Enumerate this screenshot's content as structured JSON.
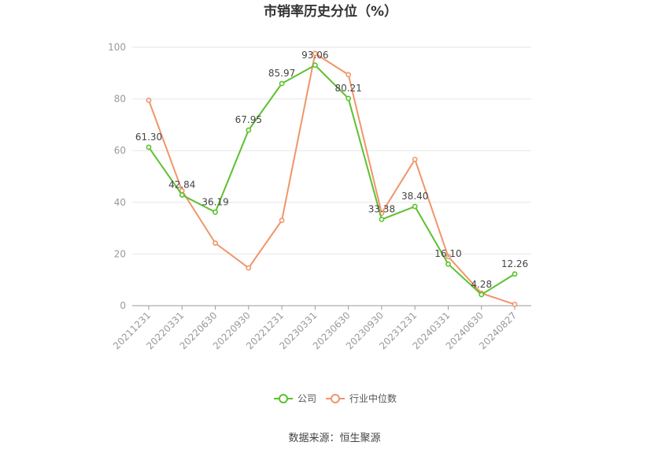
{
  "chart_data": {
    "type": "line",
    "title": "市销率历史分位（%）",
    "categories": [
      "20211231",
      "20220331",
      "20220630",
      "20220930",
      "20221231",
      "20230331",
      "20230630",
      "20230930",
      "20231231",
      "20240331",
      "20240630",
      "20240827"
    ],
    "ylim": [
      0,
      100
    ],
    "yticks": [
      0,
      20,
      40,
      60,
      80,
      100
    ],
    "grid": true,
    "legend_position": "bottom",
    "series": [
      {
        "name": "公司",
        "color": "#5cc12f",
        "values": [
          61.3,
          42.84,
          36.19,
          67.95,
          85.97,
          93.06,
          80.21,
          33.38,
          38.4,
          16.1,
          4.28,
          12.26
        ],
        "labels": [
          "61.30",
          "42.84",
          "36.19",
          "67.95",
          "85.97",
          "93.06",
          "80.21",
          "33.38",
          "38.40",
          "16.10",
          "4.28",
          "12.26"
        ]
      },
      {
        "name": "行业中位数",
        "color": "#f0956a",
        "values": [
          79.5,
          44.5,
          24.2,
          14.6,
          33.0,
          97.6,
          89.4,
          35.8,
          56.6,
          19.0,
          4.8,
          0.5
        ]
      }
    ]
  },
  "source": "数据来源：恒生聚源"
}
